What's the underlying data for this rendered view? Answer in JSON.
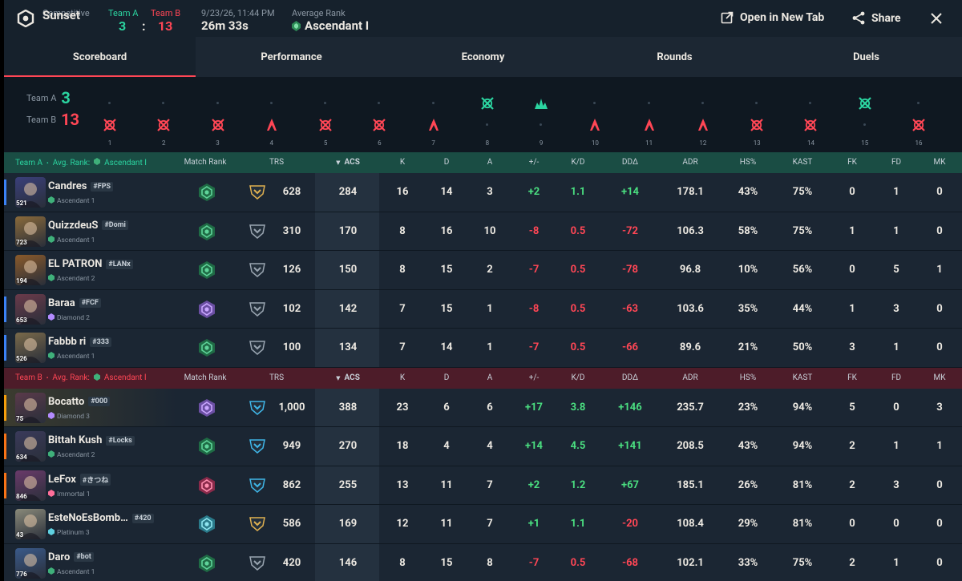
{
  "header": {
    "mode_label": "Competitive",
    "map": "Sunset",
    "team_a_label": "Team A",
    "team_b_label": "Team B",
    "team_a_score": "3",
    "score_sep": ":",
    "team_b_score": "13",
    "date": "9/23/26, 11:44 PM",
    "duration": "26m 33s",
    "avg_rank_label": "Average Rank",
    "avg_rank": "Ascendant I",
    "open_new_tab": "Open in New Tab",
    "share": "Share"
  },
  "tabs": [
    "Scoreboard",
    "Performance",
    "Economy",
    "Rounds",
    "Duels"
  ],
  "timeline": {
    "team_a_label": "Team A",
    "team_a_score": "3",
    "team_b_label": "Team B",
    "team_b_score": "13",
    "rounds": [
      {
        "n": "1",
        "winner": "b",
        "icon": "elim"
      },
      {
        "n": "2",
        "winner": "b",
        "icon": "elim"
      },
      {
        "n": "3",
        "winner": "b",
        "icon": "elim"
      },
      {
        "n": "4",
        "winner": "b",
        "icon": "spike"
      },
      {
        "n": "5",
        "winner": "b",
        "icon": "elim"
      },
      {
        "n": "6",
        "winner": "b",
        "icon": "elim"
      },
      {
        "n": "7",
        "winner": "b",
        "icon": "spike"
      },
      {
        "n": "8",
        "winner": "a",
        "icon": "elim"
      },
      {
        "n": "9",
        "winner": "a",
        "icon": "defuse"
      },
      {
        "n": "10",
        "winner": "b",
        "icon": "spike"
      },
      {
        "n": "11",
        "winner": "b",
        "icon": "spike"
      },
      {
        "n": "12",
        "winner": "b",
        "icon": "spike"
      },
      {
        "n": "13",
        "winner": "b",
        "icon": "elim"
      },
      {
        "n": "14",
        "winner": "b",
        "icon": "elim"
      },
      {
        "n": "15",
        "winner": "a",
        "icon": "elim"
      },
      {
        "n": "16",
        "winner": "b",
        "icon": "elim"
      }
    ]
  },
  "columns": {
    "match_rank": "Match Rank",
    "trs": "TRS",
    "acs": "ACS",
    "k": "K",
    "d": "D",
    "a": "A",
    "pm": "+/-",
    "kd": "K/D",
    "dd": "DDΔ",
    "adr": "ADR",
    "hs": "HS%",
    "kast": "KAST",
    "fk": "FK",
    "fd": "FD",
    "mk": "MK"
  },
  "team_a": {
    "name": "Team A",
    "avg_label": "Avg. Rank:",
    "avg_rank": "Ascendant I",
    "players": [
      {
        "name": "Candres",
        "tag": "#FPS",
        "level": "521",
        "rank": "Ascendant 1",
        "rank_tier": "ascendant",
        "trs_tier": "gold",
        "trs": "628",
        "acs": "284",
        "k": "16",
        "d": "14",
        "a": "3",
        "pm": "+2",
        "kd": "1.1",
        "dd": "+14",
        "adr": "178.1",
        "hs": "43%",
        "kast": "75%",
        "fk": "0",
        "fd": "1",
        "mk": "0",
        "stripe": "#3b82f6",
        "av": "#3a3f7a"
      },
      {
        "name": "QuizzdeuS",
        "tag": "#Domi",
        "level": "723",
        "rank": "Ascendant 1",
        "rank_tier": "ascendant",
        "trs_tier": "silver",
        "trs": "310",
        "acs": "170",
        "k": "8",
        "d": "16",
        "a": "10",
        "pm": "-8",
        "kd": "0.5",
        "dd": "-72",
        "adr": "106.3",
        "hs": "58%",
        "kast": "75%",
        "fk": "1",
        "fd": "1",
        "mk": "0",
        "stripe": "",
        "av": "#8a6a3a"
      },
      {
        "name": "EL PATRON",
        "tag": "#LANx",
        "level": "194",
        "rank": "Ascendant 2",
        "rank_tier": "ascendant",
        "trs_tier": "silver",
        "trs": "126",
        "acs": "150",
        "k": "8",
        "d": "15",
        "a": "2",
        "pm": "-7",
        "kd": "0.5",
        "dd": "-78",
        "adr": "96.8",
        "hs": "10%",
        "kast": "56%",
        "fk": "0",
        "fd": "5",
        "mk": "1",
        "stripe": "",
        "av": "#8a5a2a"
      },
      {
        "name": "Baraa",
        "tag": "#FCF",
        "level": "653",
        "rank": "Diamond 2",
        "rank_tier": "diamond",
        "trs_tier": "silver",
        "trs": "102",
        "acs": "142",
        "k": "7",
        "d": "15",
        "a": "1",
        "pm": "-8",
        "kd": "0.5",
        "dd": "-63",
        "adr": "103.6",
        "hs": "35%",
        "kast": "44%",
        "fk": "1",
        "fd": "3",
        "mk": "0",
        "stripe": "#3b82f6",
        "av": "#6a3a4a"
      },
      {
        "name": "Fabbb ri",
        "tag": "#333",
        "level": "526",
        "rank": "Ascendant 1",
        "rank_tier": "ascendant",
        "trs_tier": "silver",
        "trs": "100",
        "acs": "134",
        "k": "7",
        "d": "14",
        "a": "1",
        "pm": "-7",
        "kd": "0.5",
        "dd": "-66",
        "adr": "89.6",
        "hs": "21%",
        "kast": "50%",
        "fk": "3",
        "fd": "1",
        "mk": "0",
        "stripe": "#3b82f6",
        "av": "#7a6a4a"
      }
    ]
  },
  "team_b": {
    "name": "Team B",
    "avg_label": "Avg. Rank:",
    "avg_rank": "Ascendant I",
    "players": [
      {
        "name": "Bocatto",
        "tag": "#000",
        "level": "75",
        "rank": "Diamond 3",
        "rank_tier": "diamond",
        "trs_tier": "plat",
        "trs": "1,000",
        "acs": "388",
        "k": "23",
        "d": "6",
        "a": "6",
        "pm": "+17",
        "kd": "3.8",
        "dd": "+146",
        "adr": "235.7",
        "hs": "23%",
        "kast": "94%",
        "fk": "5",
        "fd": "0",
        "mk": "3",
        "stripe": "#f59e0b",
        "av": "#5a3a4a",
        "hl": true
      },
      {
        "name": "Bittah Kush",
        "tag": "#Locks",
        "level": "634",
        "rank": "Ascendant 2",
        "rank_tier": "ascendant",
        "trs_tier": "plat",
        "trs": "949",
        "acs": "270",
        "k": "18",
        "d": "4",
        "a": "4",
        "pm": "+14",
        "kd": "4.5",
        "dd": "+141",
        "adr": "208.5",
        "hs": "43%",
        "kast": "94%",
        "fk": "2",
        "fd": "1",
        "mk": "1",
        "stripe": "#f97316",
        "av": "#3a3a5a"
      },
      {
        "name": "LeFox",
        "tag": "#きつね",
        "level": "846",
        "rank": "Immortal 1",
        "rank_tier": "immortal",
        "trs_tier": "plat",
        "trs": "862",
        "acs": "255",
        "k": "13",
        "d": "11",
        "a": "7",
        "pm": "+2",
        "kd": "1.2",
        "dd": "+67",
        "adr": "185.1",
        "hs": "26%",
        "kast": "81%",
        "fk": "2",
        "fd": "3",
        "mk": "0",
        "stripe": "#f97316",
        "av": "#6a3a6a"
      },
      {
        "name": "EsteNoEsBomb…",
        "tag": "#420",
        "level": "43",
        "rank": "Platinum 3",
        "rank_tier": "platinum",
        "trs_tier": "gold",
        "trs": "586",
        "acs": "169",
        "k": "12",
        "d": "11",
        "a": "7",
        "pm": "+1",
        "kd": "1.1",
        "dd": "-20",
        "adr": "108.4",
        "hs": "29%",
        "kast": "81%",
        "fk": "0",
        "fd": "0",
        "mk": "0",
        "stripe": "",
        "av": "#8a8a7a"
      },
      {
        "name": "Daro",
        "tag": "#bot",
        "level": "776",
        "rank": "Ascendant 1",
        "rank_tier": "ascendant",
        "trs_tier": "silver",
        "trs": "420",
        "acs": "146",
        "k": "8",
        "d": "15",
        "a": "8",
        "pm": "-7",
        "kd": "0.5",
        "dd": "-68",
        "adr": "102.1",
        "hs": "33%",
        "kast": "75%",
        "fk": "2",
        "fd": "1",
        "mk": "0",
        "stripe": "",
        "av": "#3a5a8a"
      }
    ]
  },
  "colors": {
    "team_a": "#2bd4a0",
    "team_b": "#ff4655",
    "positive": "#4ade80",
    "negative": "#ff4655"
  }
}
